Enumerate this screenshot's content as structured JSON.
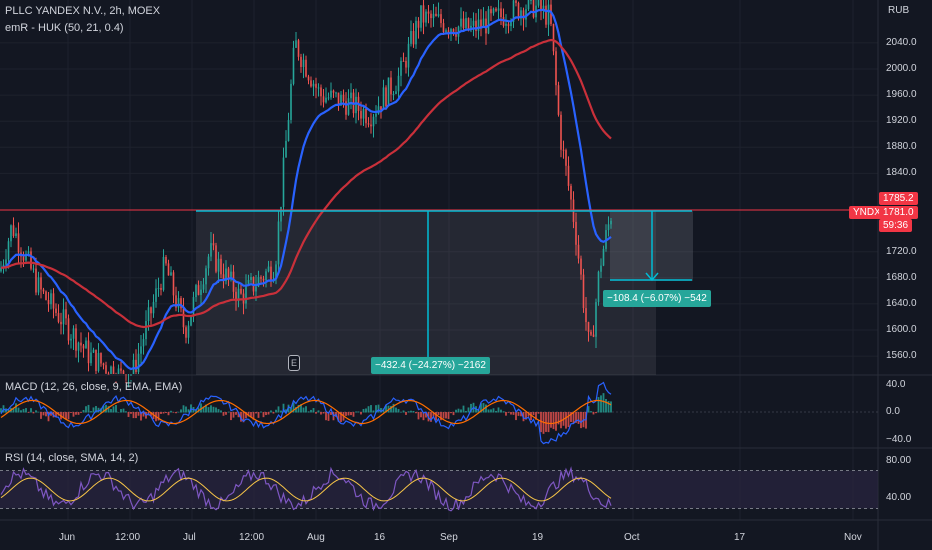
{
  "header": {
    "symbol_title": "PLLC YANDEX N.V., 2h, MOEX",
    "indicator_title": "emR - HUK (50, 21, 0.4)",
    "currency": "RUB"
  },
  "price_axis": {
    "ticks": [
      "2040.0",
      "2000.0",
      "1960.0",
      "1920.0",
      "1880.0",
      "1840.0",
      "1720.0",
      "1680.0",
      "1640.0",
      "1600.0",
      "1560.0"
    ],
    "tick_values": [
      2040,
      2000,
      1960,
      1920,
      1880,
      1840,
      1720,
      1680,
      1640,
      1600,
      1560
    ],
    "line_price_label": "1785.2",
    "symbol_badge": "YNDX",
    "last_price_label": "1781.0",
    "countdown": "59:36"
  },
  "measurements": [
    {
      "label": "−432.4 (−24.27%) −2162"
    },
    {
      "label": "−108.4 (−6.07%) −542"
    }
  ],
  "macd": {
    "title": "MACD (12, 26, close, 9, EMA, EMA)",
    "ticks": [
      "40.0",
      "0.0",
      "−40.0"
    ]
  },
  "rsi": {
    "title": "RSI (14, close, SMA, 14, 2)",
    "ticks": [
      "80.00",
      "40.00"
    ]
  },
  "time_axis": {
    "labels": [
      "Jun",
      "12:00",
      "Jul",
      "12:00",
      "Aug",
      "16",
      "Sep",
      "19",
      "Oct",
      "17",
      "Nov"
    ]
  },
  "colors": {
    "background": "#131722",
    "up": "#26a69a",
    "down": "#ef5350",
    "ema_blue": "#2962ff",
    "ema_red": "#c9303a",
    "measure_cyan": "#00bcd4",
    "measure_green": "#26a69a",
    "rsi_line": "#7e57c2",
    "rsi_band": "#2a2540",
    "macd_signal": "#ff6d00"
  },
  "event_marker": {
    "label": "E"
  }
}
